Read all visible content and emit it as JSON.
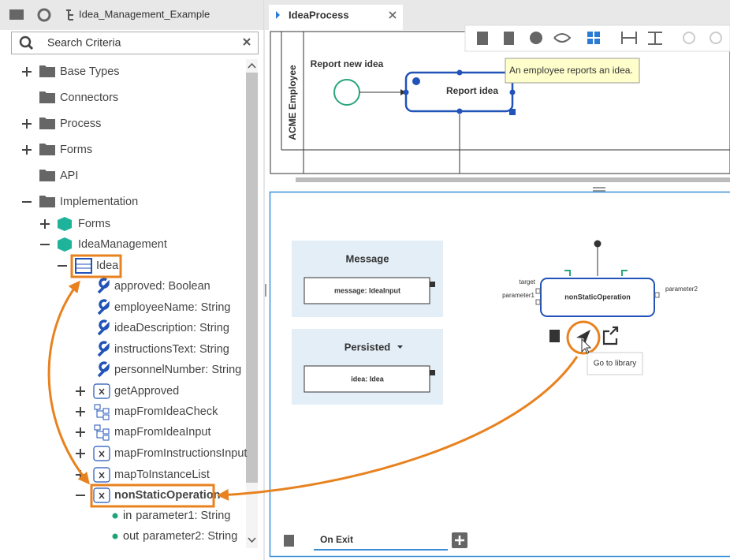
{
  "header": {
    "project": "Idea_Management_Example"
  },
  "search": {
    "placeholder": "Search Criteria"
  },
  "tree": [
    {
      "label": "Base Types"
    },
    {
      "label": "Connectors"
    },
    {
      "label": "Process"
    },
    {
      "label": "Forms"
    },
    {
      "label": "API"
    },
    {
      "label": "Implementation"
    },
    {
      "label": "Forms"
    },
    {
      "label": "IdeaManagement"
    },
    {
      "label": "Idea"
    },
    {
      "label": "approved: Boolean"
    },
    {
      "label": "employeeName: String"
    },
    {
      "label": "ideaDescription: String"
    },
    {
      "label": "instructionsText: String"
    },
    {
      "label": "personnelNumber: String"
    },
    {
      "label": "getApproved"
    },
    {
      "label": "mapFromIdeaCheck"
    },
    {
      "label": "mapFromIdeaInput"
    },
    {
      "label": "mapFromInstructionsInput"
    },
    {
      "label": "mapToInstanceList"
    },
    {
      "label": "nonStaticOperation"
    },
    {
      "direction": "in",
      "label": "parameter1: String"
    },
    {
      "direction": "out",
      "label": "parameter2: String"
    }
  ],
  "editor": {
    "tab": "IdeaProcess",
    "lane": "ACME Employee",
    "start_event": "Report new idea",
    "task": "Report idea",
    "annotation": "An employee reports an idea."
  },
  "mapping": {
    "message": {
      "title": "Message",
      "pin": "message: IdeaInput"
    },
    "persisted": {
      "title": "Persisted",
      "pin": "idea: Idea"
    },
    "operation": {
      "name": "nonStaticOperation",
      "inputs": [
        "target",
        "parameter1"
      ],
      "outputs": [
        "parameter2"
      ]
    },
    "tooltip": "Go to library",
    "tab": "On Exit"
  }
}
